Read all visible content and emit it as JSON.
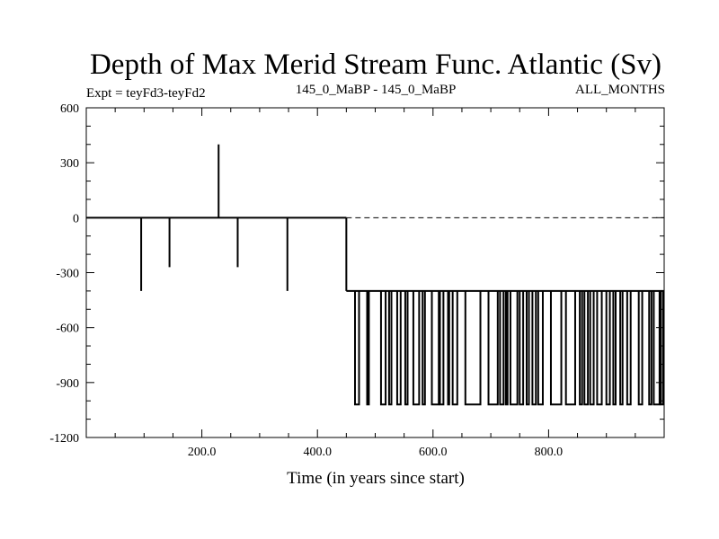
{
  "chart_data": {
    "type": "line",
    "title": "Depth of Max Merid Stream Func. Atlantic (Sv)",
    "subtitle_left": "Expt = teyFd3-teyFd2",
    "subtitle_center": "145_0_MaBP - 145_0_MaBP",
    "subtitle_right": "ALL_MONTHS",
    "xlabel": "Time (in years since start)",
    "ylabel": "",
    "xlim": [
      0,
      1000
    ],
    "ylim": [
      -1200,
      600
    ],
    "x_ticks": [
      200,
      400,
      600,
      800
    ],
    "x_tick_labels": [
      "200.0",
      "400.0",
      "600.0",
      "800.0"
    ],
    "y_ticks": [
      600,
      300,
      0,
      -300,
      -600,
      -900,
      -1200
    ],
    "y_tick_labels": [
      "600",
      "300",
      "0",
      "-300",
      "-600",
      "-900",
      "-1200"
    ],
    "reference_line": {
      "y": 0,
      "style": "dashed",
      "x_start": 450
    },
    "baseline_segments": [
      {
        "x_start": 0,
        "x_end": 450,
        "y": 0
      },
      {
        "x_start": 450,
        "x_end": 1000,
        "y": -400
      }
    ],
    "spikes": [
      {
        "x": 95,
        "y": -400
      },
      {
        "x": 144,
        "y": -270
      },
      {
        "x": 229,
        "y": 400
      },
      {
        "x": 262,
        "y": -270
      },
      {
        "x": 348,
        "y": -400
      }
    ],
    "transition": {
      "x": 450,
      "from": 0,
      "to": -400
    },
    "drops_to": -1020,
    "drop_segments": [
      [
        465,
        472
      ],
      [
        486,
        489
      ],
      [
        510,
        518
      ],
      [
        524,
        528
      ],
      [
        538,
        544
      ],
      [
        552,
        556
      ],
      [
        566,
        576
      ],
      [
        582,
        586
      ],
      [
        598,
        610
      ],
      [
        612,
        618
      ],
      [
        626,
        628
      ],
      [
        634,
        642
      ],
      [
        656,
        682
      ],
      [
        696,
        712
      ],
      [
        716,
        722
      ],
      [
        726,
        729
      ],
      [
        734,
        746
      ],
      [
        750,
        756
      ],
      [
        762,
        766
      ],
      [
        772,
        778
      ],
      [
        782,
        790
      ],
      [
        804,
        822
      ],
      [
        830,
        846
      ],
      [
        854,
        858
      ],
      [
        862,
        868
      ],
      [
        872,
        878
      ],
      [
        884,
        892
      ],
      [
        900,
        906
      ],
      [
        912,
        916
      ],
      [
        924,
        928
      ],
      [
        936,
        942
      ],
      [
        956,
        962
      ],
      [
        974,
        978
      ],
      [
        982,
        992
      ],
      [
        994,
        998
      ]
    ]
  }
}
